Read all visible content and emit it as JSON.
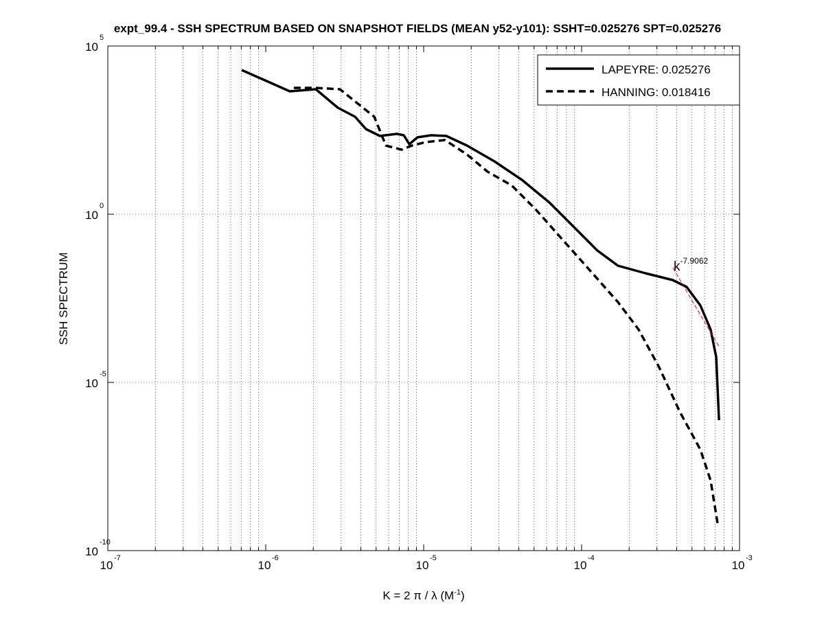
{
  "chart_data": {
    "type": "line",
    "title": "expt_99.4 - SSH SPECTRUM BASED ON SNAPSHOT FIELDS (MEAN y52-y101): SSHT=0.025276 SPT=0.025276",
    "xlabel_main": "K = 2 π / λ  (M",
    "xlabel_sup": "-1",
    "xlabel_end": ")",
    "ylabel": "SSH SPECTRUM",
    "xscale": "log",
    "yscale": "log",
    "xlim": [
      1e-07,
      0.001
    ],
    "ylim": [
      1e-10,
      100000.0
    ],
    "grid": true,
    "x_ticks": [
      {
        "base": "10",
        "exp": "-7",
        "log": -7
      },
      {
        "base": "10",
        "exp": "-6",
        "log": -6
      },
      {
        "base": "10",
        "exp": "-5",
        "log": -5
      },
      {
        "base": "10",
        "exp": "-4",
        "log": -4
      },
      {
        "base": "10",
        "exp": "-3",
        "log": -3
      }
    ],
    "y_ticks": [
      {
        "base": "10",
        "exp": "5",
        "log": 5
      },
      {
        "base": "10",
        "exp": "0",
        "log": 0
      },
      {
        "base": "10",
        "exp": "-5",
        "log": -5
      },
      {
        "base": "10",
        "exp": "-10",
        "log": -10
      }
    ],
    "legend_position": "top-right",
    "series": [
      {
        "name": "LAPEYRE: 0.025276",
        "style": "solid",
        "color": "#000000",
        "log10_x": [
          -6.152,
          -5.848,
          -5.683,
          -5.543,
          -5.435,
          -5.365,
          -5.278,
          -5.17,
          -5.126,
          -5.091,
          -5.039,
          -4.952,
          -4.857,
          -4.726,
          -4.552,
          -4.378,
          -4.204,
          -4.03,
          -3.9,
          -3.77,
          -3.596,
          -3.422,
          -3.335,
          -3.248,
          -3.183,
          -3.148,
          -3.13
        ],
        "log10_y": [
          4.286,
          3.653,
          3.714,
          3.163,
          2.898,
          2.531,
          2.327,
          2.388,
          2.347,
          2.082,
          2.286,
          2.347,
          2.327,
          2.041,
          1.571,
          1.02,
          0.347,
          -0.469,
          -1.082,
          -1.531,
          -1.755,
          -1.959,
          -2.163,
          -2.714,
          -3.429,
          -4.245,
          -6.122
        ]
      },
      {
        "name": "HANNING: 0.018416",
        "style": "dashed",
        "color": "#000000",
        "log10_x": [
          -5.822,
          -5.683,
          -5.53,
          -5.422,
          -5.313,
          -5.239,
          -5.139,
          -5.074,
          -4.987,
          -4.865,
          -4.726,
          -4.596,
          -4.443,
          -4.291,
          -4.117,
          -3.943,
          -3.77,
          -3.639,
          -3.509,
          -3.378,
          -3.248,
          -3.183,
          -3.139
        ],
        "log10_y": [
          3.755,
          3.755,
          3.714,
          3.306,
          2.898,
          2.041,
          1.918,
          2.041,
          2.143,
          2.204,
          1.776,
          1.265,
          0.857,
          0.143,
          -0.776,
          -1.694,
          -2.612,
          -3.429,
          -4.551,
          -5.878,
          -7.0,
          -7.918,
          -9.184
        ]
      }
    ],
    "fit": {
      "label_base": "k",
      "label_exp": "-7.9062",
      "slope": -7.9062,
      "color": "#ff0000",
      "log10_x": [
        -3.422,
        -3.13
      ],
      "log10_y": [
        -1.592,
        -3.939
      ]
    }
  }
}
